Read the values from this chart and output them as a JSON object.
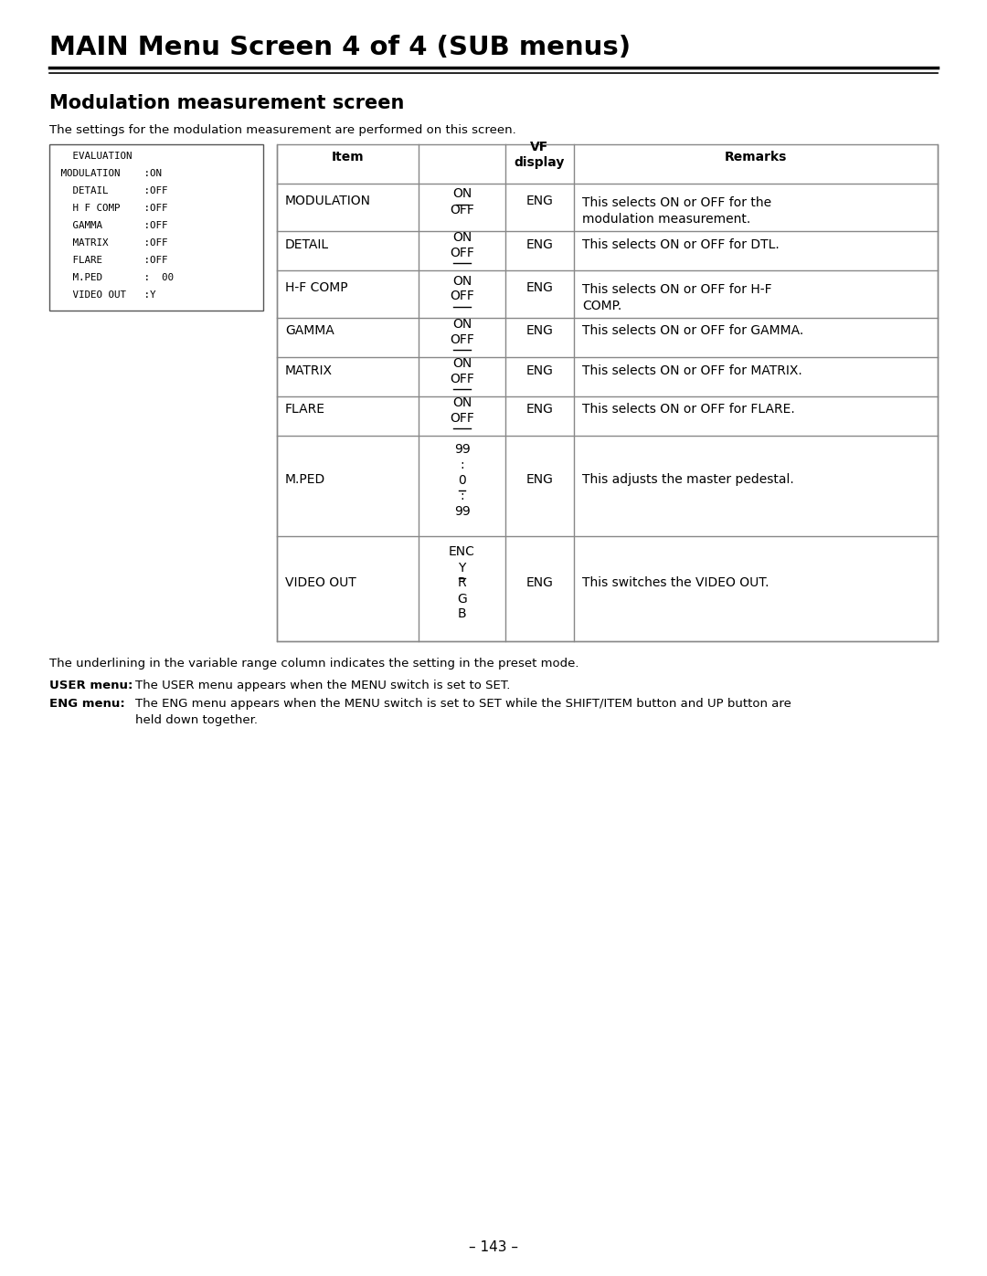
{
  "title": "MAIN Menu Screen 4 of 4 (SUB menus)",
  "section_title": "Modulation measurement screen",
  "section_desc": "The settings for the modulation measurement are performed on this screen.",
  "screen_lines": [
    "   EVALUATION",
    " MODULATION    :ON",
    "   DETAIL      :OFF",
    "   H F COMP    :OFF",
    "   GAMMA       :OFF",
    "   MATRIX      :OFF",
    "   FLARE       :OFF",
    "   M.PED       :  00",
    "   VIDEO OUT   :Y"
  ],
  "table_rows": [
    {
      "item": "MODULATION",
      "range_lines": [
        "ON",
        "OFF"
      ],
      "range_underline": [
        0
      ],
      "vf": "ENG",
      "remarks_lines": [
        "This selects ON or OFF for the",
        "modulation measurement."
      ]
    },
    {
      "item": "DETAIL",
      "range_lines": [
        "ON",
        "OFF"
      ],
      "range_underline": [
        1
      ],
      "vf": "ENG",
      "remarks_lines": [
        "This selects ON or OFF for DTL."
      ]
    },
    {
      "item": "H-F COMP",
      "range_lines": [
        "ON",
        "OFF"
      ],
      "range_underline": [
        1
      ],
      "vf": "ENG",
      "remarks_lines": [
        "This selects ON or OFF for H-F",
        "COMP."
      ]
    },
    {
      "item": "GAMMA",
      "range_lines": [
        "ON",
        "OFF"
      ],
      "range_underline": [
        1
      ],
      "vf": "ENG",
      "remarks_lines": [
        "This selects ON or OFF for GAMMA."
      ]
    },
    {
      "item": "MATRIX",
      "range_lines": [
        "ON",
        "OFF"
      ],
      "range_underline": [
        1
      ],
      "vf": "ENG",
      "remarks_lines": [
        "This selects ON or OFF for MATRIX."
      ]
    },
    {
      "item": "FLARE",
      "range_lines": [
        "ON",
        "OFF"
      ],
      "range_underline": [
        1
      ],
      "vf": "ENG",
      "remarks_lines": [
        "This selects ON or OFF for FLARE."
      ]
    },
    {
      "item": "M.PED",
      "range_lines": [
        " 99",
        ":",
        "  0",
        ":",
        "99"
      ],
      "range_underline": [
        2
      ],
      "vf": "ENG",
      "remarks_lines": [
        "This adjusts the master pedestal."
      ]
    },
    {
      "item": "VIDEO OUT",
      "range_lines": [
        "ENC",
        "Y",
        "R",
        "G",
        "B"
      ],
      "range_underline": [
        1
      ],
      "vf": "ENG",
      "remarks_lines": [
        "This switches the VIDEO OUT."
      ]
    }
  ],
  "footnote1": "The underlining in the variable range column indicates the setting in the preset mode.",
  "fn2_label": "USER menu:",
  "fn2_text": "The USER menu appears when the MENU switch is set to SET.",
  "fn3_label": "ENG menu:",
  "fn3_text_line1": "The ENG menu appears when the MENU switch is set to SET while the SHIFT/ITEM button and UP button are",
  "fn3_text_line2": "held down together.",
  "page_number": "– 143 –",
  "bg_color": "#ffffff",
  "lc": "#888888"
}
